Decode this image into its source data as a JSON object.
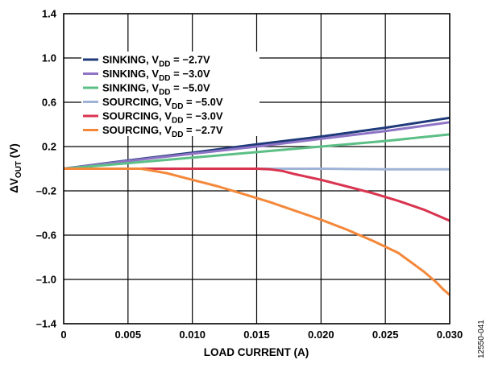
{
  "figure_id": "12550-041",
  "colors": {
    "sinking_2_7": "#1f3a7a",
    "sinking_3_0": "#8e74c4",
    "sinking_5_0": "#5cbf86",
    "sourcing_5_0": "#9fb3d6",
    "sourcing_3_0": "#d9344f",
    "sourcing_2_7": "#f4883a"
  },
  "chart_data": {
    "type": "line",
    "xlabel": "LOAD CURRENT (A)",
    "ylabel": {
      "main": "ΔV",
      "sub": "OUT",
      "unit": " (V)"
    },
    "xlim": [
      0,
      0.03
    ],
    "ylim": [
      -1.4,
      1.4
    ],
    "x_ticks": [
      0,
      0.005,
      0.01,
      0.015,
      0.02,
      0.025,
      0.03
    ],
    "x_tick_labels": [
      "0",
      "0.005",
      "0.010",
      "0.015",
      "0.020",
      "0.025",
      "0.030"
    ],
    "y_ticks": [
      1.4,
      1.0,
      0.6,
      0.2,
      -0.2,
      -0.6,
      -1.0,
      -1.4
    ],
    "y_tick_labels": [
      "1.4",
      "1.0",
      "0.6",
      "0.2",
      "–0.2",
      "–0.6",
      "–1.0",
      "–1.4"
    ],
    "grid": true,
    "legend_position": "top-left",
    "series": [
      {
        "name": "SINKING, VDD = −2.7V",
        "label_pre": "SINKING, V",
        "label_sub": "DD",
        "label_post": " = −2.7V",
        "color_key": "sinking_2_7",
        "points": [
          [
            0,
            0
          ],
          [
            0.005,
            0.075
          ],
          [
            0.01,
            0.145
          ],
          [
            0.015,
            0.22
          ],
          [
            0.02,
            0.29
          ],
          [
            0.025,
            0.37
          ],
          [
            0.03,
            0.46
          ]
        ]
      },
      {
        "name": "SINKING, VDD = −3.0V",
        "label_pre": "SINKING, V",
        "label_sub": "DD",
        "label_post": " = −3.0V",
        "color_key": "sinking_3_0",
        "points": [
          [
            0,
            0
          ],
          [
            0.005,
            0.07
          ],
          [
            0.01,
            0.135
          ],
          [
            0.015,
            0.2
          ],
          [
            0.02,
            0.27
          ],
          [
            0.025,
            0.34
          ],
          [
            0.03,
            0.42
          ]
        ]
      },
      {
        "name": "SINKING, VDD = −5.0V",
        "label_pre": "SINKING, V",
        "label_sub": "DD",
        "label_post": " = −5.0V",
        "color_key": "sinking_5_0",
        "points": [
          [
            0,
            0
          ],
          [
            0.005,
            0.05
          ],
          [
            0.01,
            0.1
          ],
          [
            0.015,
            0.15
          ],
          [
            0.02,
            0.2
          ],
          [
            0.025,
            0.25
          ],
          [
            0.03,
            0.31
          ]
        ]
      },
      {
        "name": "SOURCING, VDD = −5.0V",
        "label_pre": "SOURCING, V",
        "label_sub": "DD",
        "label_post": " = −5.0V",
        "color_key": "sourcing_5_0",
        "points": [
          [
            0,
            0
          ],
          [
            0.005,
            0
          ],
          [
            0.01,
            0
          ],
          [
            0.015,
            0
          ],
          [
            0.02,
            0
          ],
          [
            0.025,
            -0.005
          ],
          [
            0.03,
            -0.005
          ]
        ]
      },
      {
        "name": "SOURCING, VDD = −3.0V",
        "label_pre": "SOURCING, V",
        "label_sub": "DD",
        "label_post": " = −3.0V",
        "color_key": "sourcing_3_0",
        "points": [
          [
            0,
            0
          ],
          [
            0.005,
            0
          ],
          [
            0.01,
            0
          ],
          [
            0.015,
            0
          ],
          [
            0.016,
            -0.005
          ],
          [
            0.017,
            -0.02
          ],
          [
            0.018,
            -0.05
          ],
          [
            0.02,
            -0.1
          ],
          [
            0.022,
            -0.16
          ],
          [
            0.024,
            -0.22
          ],
          [
            0.026,
            -0.29
          ],
          [
            0.028,
            -0.37
          ],
          [
            0.03,
            -0.47
          ]
        ]
      },
      {
        "name": "SOURCING, VDD = −2.7V",
        "label_pre": "SOURCING, V",
        "label_sub": "DD",
        "label_post": " = −2.7V",
        "color_key": "sourcing_2_7",
        "points": [
          [
            0,
            0
          ],
          [
            0.006,
            0
          ],
          [
            0.0065,
            -0.01
          ],
          [
            0.008,
            -0.04
          ],
          [
            0.01,
            -0.1
          ],
          [
            0.012,
            -0.16
          ],
          [
            0.014,
            -0.23
          ],
          [
            0.016,
            -0.3
          ],
          [
            0.018,
            -0.38
          ],
          [
            0.02,
            -0.46
          ],
          [
            0.022,
            -0.55
          ],
          [
            0.024,
            -0.65
          ],
          [
            0.026,
            -0.76
          ],
          [
            0.028,
            -0.93
          ],
          [
            0.029,
            -1.03
          ],
          [
            0.0295,
            -1.09
          ],
          [
            0.03,
            -1.14
          ]
        ]
      }
    ]
  }
}
